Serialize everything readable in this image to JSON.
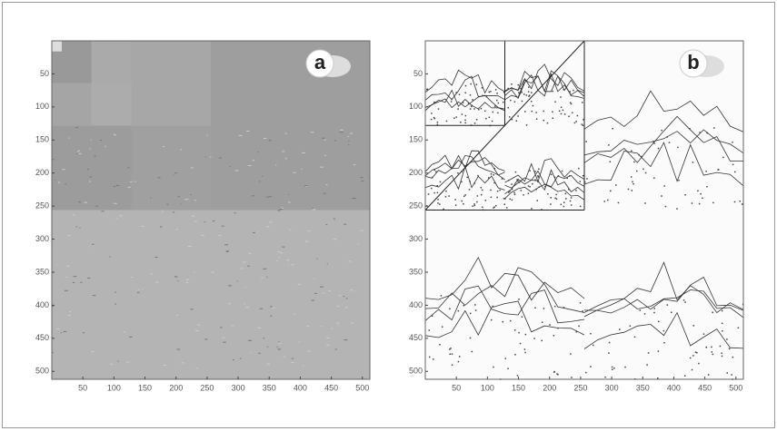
{
  "panels": [
    {
      "label": "a",
      "xlim": [
        0,
        512
      ],
      "ylim": [
        0,
        512
      ],
      "y_reversed": true,
      "xticks": [
        50,
        100,
        150,
        200,
        250,
        300,
        350,
        400,
        450,
        500
      ],
      "yticks": [
        50,
        100,
        150,
        200,
        250,
        300,
        350,
        400,
        450,
        500
      ]
    },
    {
      "label": "b",
      "xlim": [
        0,
        512
      ],
      "ylim": [
        0,
        512
      ],
      "y_reversed": true,
      "xticks": [
        50,
        100,
        150,
        200,
        250,
        300,
        350,
        400,
        450,
        500
      ],
      "yticks": [
        50,
        100,
        150,
        200,
        250,
        300,
        350,
        400,
        450,
        500
      ]
    }
  ]
}
